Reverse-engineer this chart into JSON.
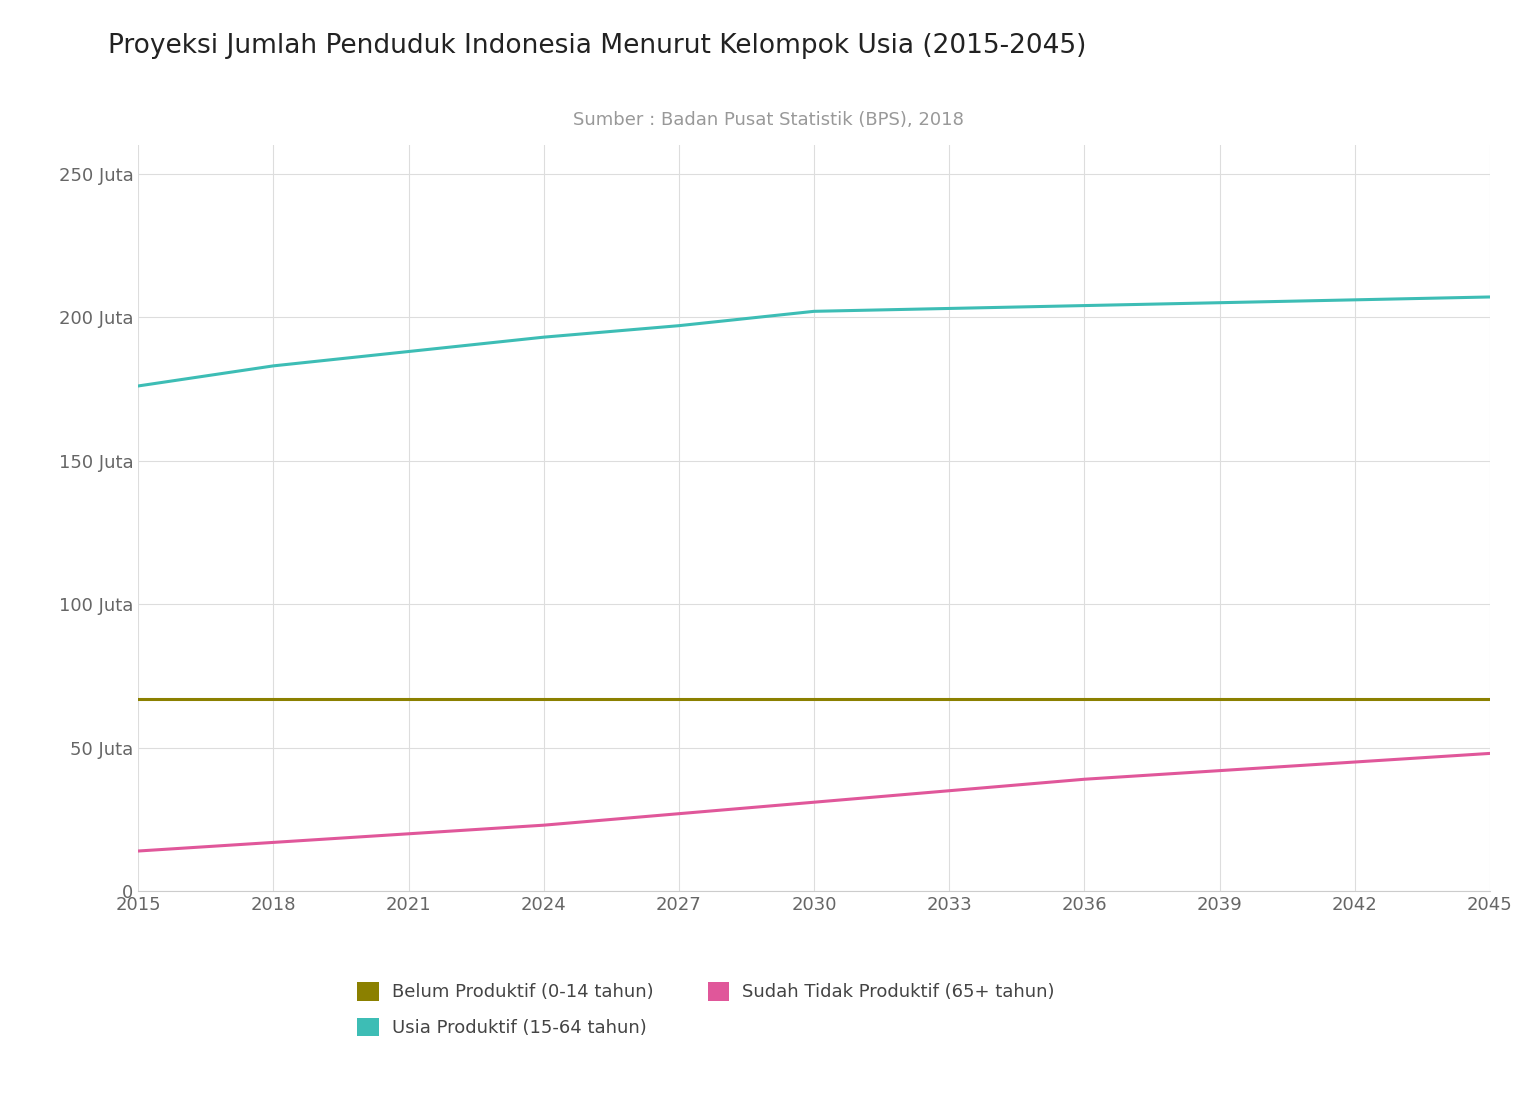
{
  "title": "Proyeksi Jumlah Penduduk Indonesia Menurut Kelompok Usia (2015-2045)",
  "subtitle": "Sumber : Badan Pusat Statistik (BPS), 2018",
  "years": [
    2015,
    2018,
    2021,
    2024,
    2027,
    2030,
    2033,
    2036,
    2039,
    2042,
    2045
  ],
  "belum_produktif": [
    67,
    67,
    67,
    67,
    67,
    67,
    67,
    67,
    67,
    67,
    67
  ],
  "usia_produktif": [
    176,
    183,
    188,
    193,
    197,
    202,
    203,
    204,
    205,
    206,
    207
  ],
  "sudah_tidak_produktif": [
    14,
    17,
    20,
    23,
    27,
    31,
    35,
    39,
    42,
    45,
    48
  ],
  "color_belum": "#8B8000",
  "color_usia": "#3DBDB5",
  "color_sudah": "#E0579A",
  "label_belum": "Belum Produktif (0-14 tahun)",
  "label_usia": "Usia Produktif (15-64 tahun)",
  "label_sudah": "Sudah Tidak Produktif (65+ tahun)",
  "ylim": [
    0,
    260
  ],
  "yticks": [
    0,
    50,
    100,
    150,
    200,
    250
  ],
  "ytick_labels": [
    "0",
    "50 Juta",
    "100 Juta",
    "150 Juta",
    "200 Juta",
    "250 Juta"
  ],
  "background_color": "#ffffff",
  "title_fontsize": 19,
  "subtitle_fontsize": 13,
  "tick_fontsize": 13,
  "legend_fontsize": 13,
  "line_width": 2.2
}
